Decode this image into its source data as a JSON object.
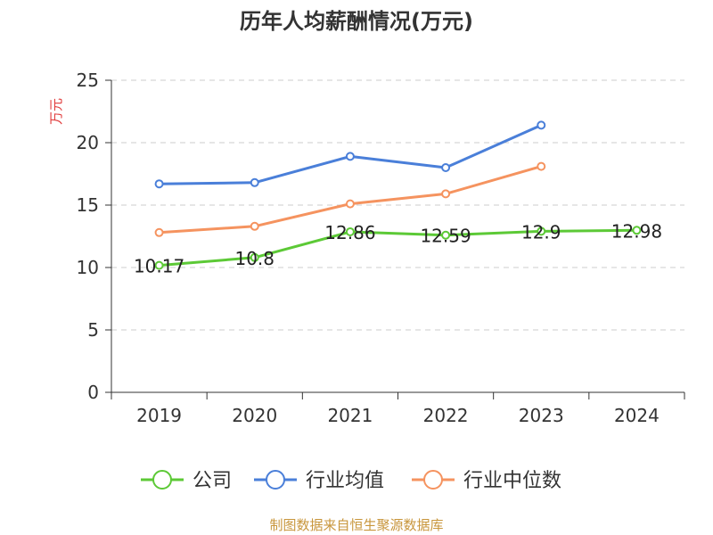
{
  "chart_data": {
    "type": "line",
    "title": "历年人均薪酬情况(万元)",
    "ylabel": "万元",
    "categories": [
      "2019",
      "2020",
      "2021",
      "2022",
      "2023",
      "2024"
    ],
    "ylim": [
      0,
      25
    ],
    "yticks": [
      0,
      5,
      10,
      15,
      20,
      25
    ],
    "grid": true,
    "legend_position": "bottom",
    "series": [
      {
        "name": "公司",
        "color": "#5cc936",
        "values": [
          10.17,
          10.8,
          12.86,
          12.59,
          12.9,
          12.98
        ],
        "labels": [
          "10.17",
          "10.8",
          "12.86",
          "12.59",
          "12.9",
          "12.98"
        ]
      },
      {
        "name": "行业均值",
        "color": "#4a7fd9",
        "values": [
          16.7,
          16.8,
          18.9,
          18.0,
          21.4,
          null
        ]
      },
      {
        "name": "行业中位数",
        "color": "#f5935f",
        "values": [
          12.8,
          13.3,
          15.1,
          15.9,
          18.1,
          null
        ]
      }
    ]
  },
  "source_text": "制图数据来自恒生聚源数据库",
  "colors": {
    "ylabel": "#e03b3b",
    "source": "#c8963c",
    "grid": "#cccccc",
    "axis": "#333333"
  }
}
